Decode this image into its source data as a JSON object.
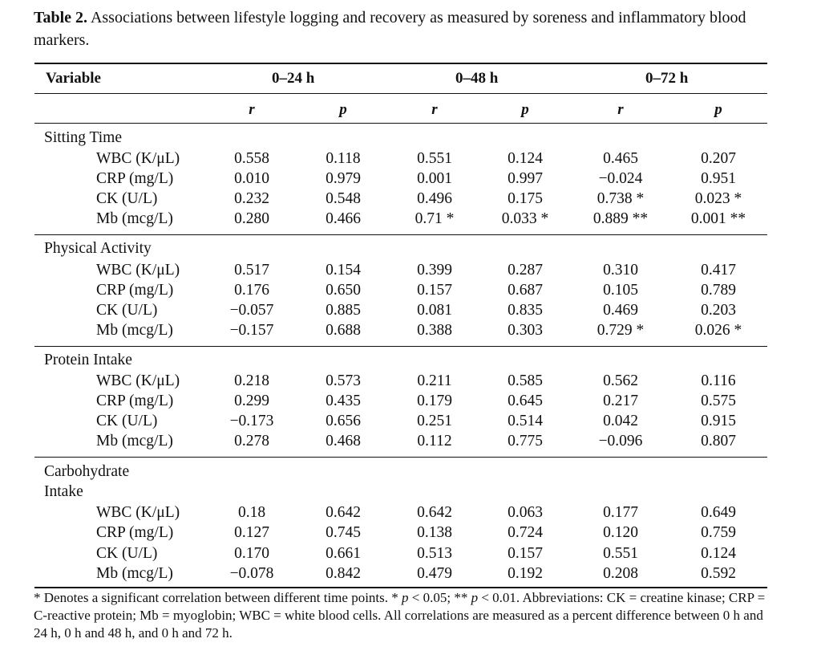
{
  "caption": {
    "label": "Table 2.",
    "text": " Associations between lifestyle logging and recovery as measured by soreness and inflammatory blood markers."
  },
  "headers": {
    "variable": "Variable",
    "periods": [
      "0–24 h",
      "0–48 h",
      "0–72 h"
    ],
    "stats": [
      "r",
      "p",
      "r",
      "p",
      "r",
      "p"
    ]
  },
  "groups": [
    {
      "label": "Sitting Time",
      "rows": [
        {
          "name": "WBC (K/μL)",
          "values": [
            "0.558",
            "0.118",
            "0.551",
            "0.124",
            "0.465",
            "0.207"
          ]
        },
        {
          "name": "CRP (mg/L)",
          "values": [
            "0.010",
            "0.979",
            "0.001",
            "0.997",
            "−0.024",
            "0.951"
          ]
        },
        {
          "name": "CK (U/L)",
          "values": [
            "0.232",
            "0.548",
            "0.496",
            "0.175",
            "0.738 *",
            "0.023 *"
          ]
        },
        {
          "name": "Mb (mcg/L)",
          "values": [
            "0.280",
            "0.466",
            "0.71 *",
            "0.033 *",
            "0.889 **",
            "0.001 **"
          ]
        }
      ]
    },
    {
      "label": "Physical Activity",
      "rows": [
        {
          "name": "WBC (K/μL)",
          "values": [
            "0.517",
            "0.154",
            "0.399",
            "0.287",
            "0.310",
            "0.417"
          ]
        },
        {
          "name": "CRP (mg/L)",
          "values": [
            "0.176",
            "0.650",
            "0.157",
            "0.687",
            "0.105",
            "0.789"
          ]
        },
        {
          "name": "CK (U/L)",
          "values": [
            "−0.057",
            "0.885",
            "0.081",
            "0.835",
            "0.469",
            "0.203"
          ]
        },
        {
          "name": "Mb (mcg/L)",
          "values": [
            "−0.157",
            "0.688",
            "0.388",
            "0.303",
            "0.729 *",
            "0.026 *"
          ]
        }
      ]
    },
    {
      "label": "Protein Intake",
      "rows": [
        {
          "name": "WBC (K/μL)",
          "values": [
            "0.218",
            "0.573",
            "0.211",
            "0.585",
            "0.562",
            "0.116"
          ]
        },
        {
          "name": "CRP (mg/L)",
          "values": [
            "0.299",
            "0.435",
            "0.179",
            "0.645",
            "0.217",
            "0.575"
          ]
        },
        {
          "name": "CK (U/L)",
          "values": [
            "−0.173",
            "0.656",
            "0.251",
            "0.514",
            "0.042",
            "0.915"
          ]
        },
        {
          "name": "Mb (mcg/L)",
          "values": [
            "0.278",
            "0.468",
            "0.112",
            "0.775",
            "−0.096",
            "0.807"
          ]
        }
      ]
    },
    {
      "label": "Carbohydrate Intake",
      "label_lines": [
        "Carbohydrate",
        "Intake"
      ],
      "rows": [
        {
          "name": "WBC (K/μL)",
          "values": [
            "0.18",
            "0.642",
            "0.642",
            "0.063",
            "0.177",
            "0.649"
          ]
        },
        {
          "name": "CRP (mg/L)",
          "values": [
            "0.127",
            "0.745",
            "0.138",
            "0.724",
            "0.120",
            "0.759"
          ]
        },
        {
          "name": "CK (U/L)",
          "values": [
            "0.170",
            "0.661",
            "0.513",
            "0.157",
            "0.551",
            "0.124"
          ]
        },
        {
          "name": "Mb (mcg/L)",
          "values": [
            "−0.078",
            "0.842",
            "0.479",
            "0.192",
            "0.208",
            "0.592"
          ]
        }
      ]
    }
  ],
  "footnote": {
    "p1": "* Denotes a significant correlation between different time points. *",
    "p_sym": "p",
    "p2": " < 0.05; **",
    "p3": " < 0.01. Abbreviations: CK = creatine kinase; CRP = C-reactive protein; Mb = myoglobin; WBC = white blood cells. All correlations are measured as a percent difference between 0 h and 24 h, 0 h and 48 h, and 0 h and 72 h."
  }
}
